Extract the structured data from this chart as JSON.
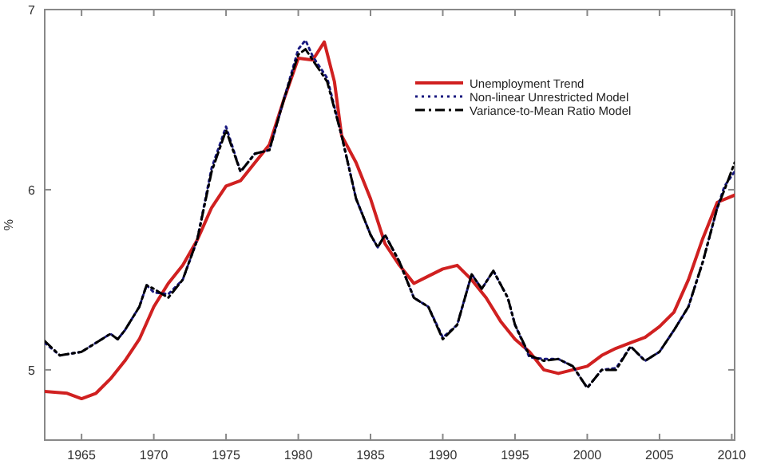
{
  "chart_data": {
    "type": "line",
    "ylabel": "%",
    "xlim": [
      1962.45,
      2010.2
    ],
    "ylim": [
      4.61,
      7
    ],
    "xticks": [
      1965,
      1970,
      1975,
      1980,
      1985,
      1990,
      1995,
      2000,
      2005,
      2010
    ],
    "yticks": [
      5,
      6,
      7
    ],
    "grid": false,
    "legend": "top right",
    "marker": "none",
    "series": [
      {
        "name": "Unemployment Trend",
        "color": "#d02020",
        "line_style": "solid",
        "x": [
          1962.45,
          1964,
          1965,
          1966,
          1967,
          1968,
          1969,
          1970,
          1971,
          1972,
          1973,
          1974,
          1975,
          1976,
          1977,
          1978,
          1979,
          1980,
          1981,
          1981.8,
          1982.5,
          1983,
          1984,
          1985,
          1986,
          1987,
          1988,
          1989,
          1990,
          1991,
          1992,
          1993,
          1994,
          1995,
          1996,
          1997,
          1998,
          1999,
          2000,
          2001,
          2002,
          2003,
          2004,
          2005,
          2006,
          2007,
          2008,
          2009,
          2010.2
        ],
        "values": [
          4.88,
          4.87,
          4.84,
          4.87,
          4.95,
          5.05,
          5.17,
          5.35,
          5.48,
          5.58,
          5.72,
          5.9,
          6.02,
          6.05,
          6.15,
          6.25,
          6.5,
          6.73,
          6.72,
          6.82,
          6.6,
          6.3,
          6.15,
          5.95,
          5.7,
          5.58,
          5.48,
          5.52,
          5.56,
          5.58,
          5.5,
          5.4,
          5.27,
          5.17,
          5.1,
          5.0,
          4.98,
          5.0,
          5.02,
          5.08,
          5.12,
          5.15,
          5.18,
          5.24,
          5.32,
          5.5,
          5.73,
          5.93,
          5.97
        ]
      },
      {
        "name": "Non-linear Unrestricted Model",
        "color": "#1a1a80",
        "line_style": "dotted",
        "x": [
          1962.45,
          1963.5,
          1965,
          1966,
          1967,
          1967.5,
          1968,
          1969,
          1969.5,
          1970,
          1971,
          1972,
          1973,
          1974,
          1975,
          1976,
          1977,
          1978,
          1979,
          1980,
          1980.5,
          1981,
          1982,
          1983,
          1984,
          1985,
          1985.5,
          1986,
          1987,
          1988,
          1989,
          1990,
          1991,
          1992,
          1992.7,
          1993.5,
          1994.5,
          1995,
          1996,
          1997,
          1998,
          1999,
          2000,
          2001,
          2002,
          2003,
          2004,
          2005,
          2006,
          2007,
          2008,
          2009,
          2009.5,
          2010.2
        ],
        "values": [
          5.15,
          5.08,
          5.1,
          5.15,
          5.2,
          5.17,
          5.22,
          5.35,
          5.47,
          5.43,
          5.42,
          5.5,
          5.72,
          6.12,
          6.35,
          6.1,
          6.2,
          6.22,
          6.5,
          6.78,
          6.83,
          6.74,
          6.62,
          6.3,
          5.95,
          5.75,
          5.68,
          5.75,
          5.6,
          5.4,
          5.35,
          5.18,
          5.25,
          5.53,
          5.45,
          5.55,
          5.4,
          5.25,
          5.07,
          5.06,
          5.06,
          5.02,
          4.9,
          5.0,
          5.01,
          5.13,
          5.05,
          5.1,
          5.22,
          5.35,
          5.6,
          5.9,
          6.02,
          6.1
        ]
      },
      {
        "name": "Variance-to-Mean Ratio Model",
        "color": "#000000",
        "line_style": "dashdot",
        "x": [
          1962.45,
          1963.5,
          1965,
          1966,
          1967,
          1967.5,
          1968,
          1969,
          1969.5,
          1970,
          1971,
          1972,
          1973,
          1974,
          1975,
          1976,
          1977,
          1978,
          1979,
          1980,
          1980.5,
          1981,
          1982,
          1983,
          1984,
          1985,
          1985.5,
          1986,
          1987,
          1988,
          1989,
          1990,
          1991,
          1992,
          1992.7,
          1993.5,
          1994.5,
          1995,
          1996,
          1997,
          1998,
          1999,
          2000,
          2001,
          2002,
          2003,
          2004,
          2005,
          2006,
          2007,
          2008,
          2009,
          2009.5,
          2010.2
        ],
        "values": [
          5.16,
          5.08,
          5.1,
          5.15,
          5.2,
          5.17,
          5.22,
          5.35,
          5.47,
          5.45,
          5.4,
          5.5,
          5.72,
          6.1,
          6.33,
          6.1,
          6.2,
          6.22,
          6.5,
          6.75,
          6.78,
          6.72,
          6.6,
          6.3,
          5.95,
          5.75,
          5.68,
          5.75,
          5.6,
          5.4,
          5.35,
          5.17,
          5.25,
          5.53,
          5.45,
          5.55,
          5.4,
          5.25,
          5.08,
          5.05,
          5.06,
          5.02,
          4.9,
          5.0,
          5.0,
          5.13,
          5.05,
          5.1,
          5.22,
          5.35,
          5.6,
          5.9,
          6.0,
          6.15
        ]
      }
    ]
  }
}
